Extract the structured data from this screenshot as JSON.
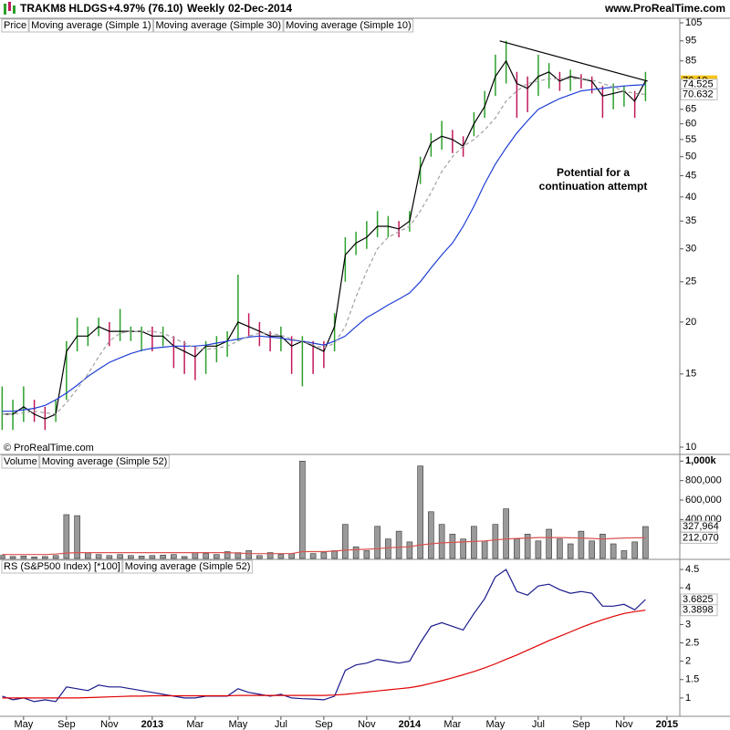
{
  "header": {
    "symbol": "TRAKM8 HLDGS",
    "change": "+4.97% (76.10)",
    "period": "Weekly",
    "date": "02-Dec-2014",
    "site": "www.ProRealTime.com"
  },
  "chart_data": [
    {
      "type": "ohlc",
      "log_scale": true,
      "credit": "© ProRealTime.com",
      "annotations": [
        "Potential for a",
        "continuation attempt"
      ],
      "xlim": [
        4.9,
        36.6
      ],
      "x": [
        5,
        5.5,
        6,
        6.5,
        7,
        7.5,
        8,
        8.5,
        9,
        9.5,
        10,
        10.5,
        11,
        11.5,
        12,
        12.5,
        13,
        13.5,
        14,
        14.5,
        15,
        15.5,
        16,
        16.5,
        17,
        17.5,
        18,
        18.5,
        19,
        19.5,
        20,
        20.5,
        21,
        21.5,
        22,
        22.5,
        23,
        23.5,
        24,
        24.5,
        25,
        25.5,
        26,
        26.5,
        27,
        27.5,
        28,
        28.5,
        29,
        29.5,
        30,
        30.5,
        31,
        31.5,
        32,
        32.5,
        33,
        33.5,
        34,
        34.5,
        35
      ],
      "ylim": [
        10,
        105
      ],
      "yticks": [
        10,
        15,
        20,
        25,
        30,
        35,
        40,
        45,
        50,
        55,
        60,
        65,
        70,
        85,
        95,
        105
      ],
      "trendline": {
        "x": [
          28.2,
          35.1
        ],
        "values": [
          95,
          76
        ],
        "color": "#000000"
      },
      "series": [
        {
          "name": "Price",
          "kind": "hl",
          "up_color": "#2ca02c",
          "down_color": "#c2185b",
          "high": [
            14,
            13,
            14,
            13,
            12.5,
            13,
            18,
            20.5,
            19.5,
            20.5,
            20,
            21.5,
            19.5,
            19.5,
            19.5,
            19.5,
            18.5,
            18,
            17.5,
            18,
            18.5,
            19,
            26,
            21,
            20,
            19,
            19.5,
            18.5,
            18.5,
            18,
            18,
            21,
            32,
            33,
            35,
            37,
            36,
            35,
            37,
            50,
            57,
            61,
            58,
            56,
            64,
            72,
            88,
            95,
            80,
            78,
            88,
            84,
            80,
            81,
            79,
            78,
            74,
            75,
            74,
            72,
            80
          ],
          "low": [
            11,
            11,
            11.5,
            11.5,
            11,
            11.5,
            13,
            17,
            17.5,
            18.5,
            17.5,
            18,
            18,
            17,
            17,
            17.5,
            15.5,
            15,
            14.5,
            15,
            16,
            16.5,
            18,
            18.5,
            17.5,
            17,
            17,
            15,
            14,
            15,
            15.5,
            17,
            25,
            29,
            30,
            32,
            32,
            32,
            33,
            43,
            50,
            52,
            51,
            50,
            56,
            62,
            70,
            75,
            62,
            64,
            70,
            73,
            72,
            72,
            73,
            71,
            62,
            65,
            66,
            62,
            68
          ]
        },
        {
          "name": "Moving average (Simple 1)",
          "kind": "line",
          "color": "#000000",
          "legend_color": "#1a237e",
          "last_label": "76.10",
          "label_bg": "#f5c518",
          "values": [
            12,
            12,
            12.5,
            12,
            11.7,
            12,
            17,
            18.5,
            18.5,
            19.5,
            19,
            19,
            19,
            19,
            18.5,
            18.5,
            17.5,
            17,
            16.5,
            17.5,
            17.5,
            18,
            20,
            19.5,
            19,
            18.5,
            18.5,
            17.5,
            18,
            17.5,
            17,
            19.5,
            29,
            31,
            32,
            34,
            34,
            33.5,
            35,
            47,
            54,
            56,
            55,
            53,
            60,
            66,
            78,
            85,
            75,
            73,
            78,
            80,
            76,
            78,
            77,
            76,
            70,
            71,
            72,
            68,
            76.1
          ]
        },
        {
          "name": "Moving average (Simple 30)",
          "kind": "line",
          "color": "#1f3fd6",
          "last_label": "74.525",
          "values": [
            12.2,
            12.2,
            12.3,
            12.4,
            12.6,
            13,
            13.5,
            14.1,
            14.8,
            15.4,
            16,
            16.4,
            16.8,
            17.1,
            17.3,
            17.4,
            17.5,
            17.5,
            17.5,
            17.6,
            17.8,
            18,
            18.2,
            18.4,
            18.5,
            18.4,
            18.3,
            18.1,
            18,
            17.8,
            17.6,
            18,
            18.5,
            19.5,
            20.5,
            21.2,
            22,
            22.7,
            23.5,
            25,
            27,
            29,
            31,
            34,
            38,
            43,
            48,
            52.5,
            57,
            61,
            65,
            67,
            69,
            70.5,
            72,
            72.5,
            73,
            73.5,
            74,
            74.3,
            74.525
          ]
        },
        {
          "name": "Moving average (Simple 10)",
          "kind": "line",
          "color": "#a0a0a0",
          "dash": true,
          "last_label": "70.632",
          "values": [
            12,
            12,
            12.1,
            12.2,
            12.1,
            12,
            12.8,
            13.8,
            15,
            16.5,
            18,
            18.8,
            19,
            19,
            19,
            18.8,
            18.3,
            17.8,
            17.3,
            17.2,
            17.3,
            17.5,
            18,
            18.5,
            18.8,
            18.8,
            18.6,
            18.2,
            18,
            17.6,
            17.3,
            17.8,
            19.5,
            23,
            26.5,
            30,
            32,
            33,
            34,
            37,
            41,
            46,
            50,
            53,
            55,
            58,
            62,
            68,
            72,
            75,
            76,
            77,
            77,
            77,
            77,
            76.5,
            75,
            73.5,
            72,
            71,
            70.632
          ]
        }
      ]
    },
    {
      "type": "bar",
      "xlim": [
        4.9,
        36.6
      ],
      "x": [
        5,
        5.5,
        6,
        6.5,
        7,
        7.5,
        8,
        8.5,
        9,
        9.5,
        10,
        10.5,
        11,
        11.5,
        12,
        12.5,
        13,
        13.5,
        14,
        14.5,
        15,
        15.5,
        16,
        16.5,
        17,
        17.5,
        18,
        18.5,
        19,
        19.5,
        20,
        20.5,
        21,
        21.5,
        22,
        22.5,
        23,
        23.5,
        24,
        24.5,
        25,
        25.5,
        26,
        26.5,
        27,
        27.5,
        28,
        28.5,
        29,
        29.5,
        30,
        30.5,
        31,
        31.5,
        32,
        32.5,
        33,
        33.5,
        34,
        34.5,
        35
      ],
      "ylim": [
        0,
        1050000
      ],
      "yticks": [
        {
          "value": 400000,
          "label": "400,000"
        },
        {
          "value": 600000,
          "label": "600,000"
        },
        {
          "value": 800000,
          "label": "800,000"
        },
        {
          "value": 1000000,
          "label": "1,000k"
        }
      ],
      "series": [
        {
          "name": "Volume",
          "kind": "bar",
          "color": "#9a9a9a",
          "legend_color": "#a0a0a0",
          "last_label": "327,964",
          "values": [
            30000,
            20000,
            25000,
            15000,
            20000,
            30000,
            450000,
            440000,
            60000,
            40000,
            30000,
            40000,
            30000,
            25000,
            30000,
            35000,
            40000,
            20000,
            60000,
            50000,
            40000,
            70000,
            60000,
            80000,
            30000,
            60000,
            40000,
            50000,
            1000000,
            50000,
            60000,
            80000,
            350000,
            120000,
            80000,
            330000,
            200000,
            280000,
            170000,
            950000,
            480000,
            350000,
            250000,
            200000,
            330000,
            180000,
            350000,
            510000,
            200000,
            250000,
            180000,
            300000,
            200000,
            150000,
            280000,
            180000,
            250000,
            150000,
            80000,
            170000,
            327964
          ]
        },
        {
          "name": "Moving average (Simple 52)",
          "kind": "line",
          "color": "#d9534f",
          "last_label": "212,070",
          "values": [
            40000,
            40000,
            40000,
            40000,
            40000,
            45000,
            55000,
            60000,
            60000,
            60000,
            60000,
            60000,
            60000,
            60000,
            60000,
            60000,
            60000,
            60000,
            60000,
            60000,
            60000,
            60000,
            55000,
            50000,
            50000,
            50000,
            50000,
            50000,
            70000,
            70000,
            70000,
            75000,
            85000,
            90000,
            95000,
            100000,
            110000,
            115000,
            120000,
            140000,
            150000,
            160000,
            165000,
            170000,
            175000,
            180000,
            190000,
            200000,
            205000,
            210000,
            215000,
            215000,
            215000,
            212000,
            210000,
            205000,
            200000,
            205000,
            210000,
            212000,
            212070
          ]
        }
      ]
    },
    {
      "type": "line",
      "xlim": [
        4.9,
        36.6
      ],
      "x": [
        5,
        5.5,
        6,
        6.5,
        7,
        7.5,
        8,
        8.5,
        9,
        9.5,
        10,
        10.5,
        11,
        11.5,
        12,
        12.5,
        13,
        13.5,
        14,
        14.5,
        15,
        15.5,
        16,
        16.5,
        17,
        17.5,
        18,
        18.5,
        19,
        19.5,
        20,
        20.5,
        21,
        21.5,
        22,
        22.5,
        23,
        23.5,
        24,
        24.5,
        25,
        25.5,
        26,
        26.5,
        27,
        27.5,
        28,
        28.5,
        29,
        29.5,
        30,
        30.5,
        31,
        31.5,
        32,
        32.5,
        33,
        33.5,
        34,
        34.5,
        35
      ],
      "xticks": [
        {
          "value": 6,
          "label": "May"
        },
        {
          "value": 8,
          "label": "Sep"
        },
        {
          "value": 10,
          "label": "Nov"
        },
        {
          "value": 12,
          "label": "2013"
        },
        {
          "value": 14,
          "label": "Mar"
        },
        {
          "value": 16,
          "label": "May"
        },
        {
          "value": 18,
          "label": "Jul"
        },
        {
          "value": 20,
          "label": "Sep"
        },
        {
          "value": 22,
          "label": "Nov"
        },
        {
          "value": 24,
          "label": "2014"
        },
        {
          "value": 26,
          "label": "Mar"
        },
        {
          "value": 28,
          "label": "May"
        },
        {
          "value": 30,
          "label": "Jul"
        },
        {
          "value": 32,
          "label": "Sep"
        },
        {
          "value": 34,
          "label": "Nov"
        },
        {
          "value": 36,
          "label": "2015"
        }
      ],
      "ylim": [
        0.5,
        4.75
      ],
      "yticks": [
        1,
        1.5,
        2,
        2.5,
        3,
        3.5,
        4,
        4.5
      ],
      "series": [
        {
          "name": "RS (S&P500 Index) [*100]",
          "kind": "line",
          "color": "#1a1a8c",
          "last_label": "3.6825",
          "values": [
            1.05,
            0.95,
            1.0,
            0.9,
            0.95,
            0.9,
            1.3,
            1.25,
            1.2,
            1.35,
            1.3,
            1.3,
            1.25,
            1.2,
            1.15,
            1.1,
            1.05,
            1.0,
            1.0,
            1.05,
            1.05,
            1.05,
            1.25,
            1.15,
            1.1,
            1.05,
            1.1,
            1.0,
            0.98,
            0.97,
            0.95,
            1.05,
            1.75,
            1.9,
            1.95,
            2.05,
            2.0,
            1.95,
            2.0,
            2.5,
            2.95,
            3.05,
            2.95,
            2.85,
            3.3,
            3.7,
            4.3,
            4.5,
            3.9,
            3.8,
            4.05,
            4.1,
            3.95,
            3.85,
            3.9,
            3.85,
            3.5,
            3.5,
            3.55,
            3.4,
            3.6825
          ]
        },
        {
          "name": "Moving average (Simple 52)",
          "kind": "line",
          "color": "#e00000",
          "last_label": "3.3898",
          "values": [
            1.0,
            1.0,
            1.0,
            1.0,
            1.0,
            1.0,
            1.0,
            1.0,
            1.01,
            1.02,
            1.03,
            1.04,
            1.05,
            1.05,
            1.06,
            1.06,
            1.06,
            1.06,
            1.06,
            1.06,
            1.06,
            1.06,
            1.07,
            1.07,
            1.07,
            1.07,
            1.07,
            1.07,
            1.07,
            1.07,
            1.07,
            1.08,
            1.1,
            1.13,
            1.16,
            1.19,
            1.22,
            1.25,
            1.28,
            1.33,
            1.4,
            1.47,
            1.55,
            1.63,
            1.72,
            1.82,
            1.93,
            2.05,
            2.17,
            2.3,
            2.43,
            2.56,
            2.68,
            2.8,
            2.92,
            3.03,
            3.13,
            3.22,
            3.3,
            3.35,
            3.3898
          ]
        }
      ]
    }
  ]
}
